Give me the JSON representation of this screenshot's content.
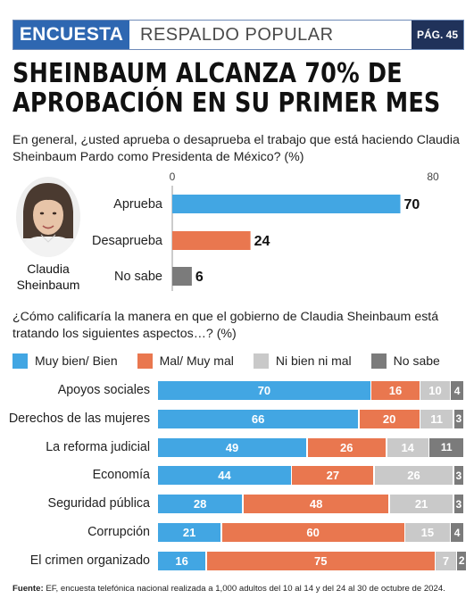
{
  "header": {
    "tag": "ENCUESTA",
    "section": "RESPALDO POPULAR",
    "page": "PÁG. 45"
  },
  "headline": "SHEINBAUM ALCANZA 70% DE APROBACIÓN EN SU PRIMER MES",
  "question1": "En general, ¿usted aprueba o desaprueba el trabajo que está haciendo Claudia Sheinbaum Pardo como Presidenta de México? (%)",
  "person_name": "Claudia Sheinbaum",
  "question2": "¿Cómo calificaría la manera en que el gobierno de Claudia Sheinbaum está tratando los siguientes aspectos…? (%)",
  "footer": {
    "label": "Fuente:",
    "text": "EF, encuesta telefónica nacional realizada a 1,000 adultos del 10 al 14 y del 24 al 30 de octubre de 2024."
  },
  "colors": {
    "blue": "#42a6e3",
    "orange": "#e9774f",
    "lightgray": "#c9c9c9",
    "darkgray": "#7b7b7b",
    "header_blue": "#2e67b1",
    "header_navy": "#20325a"
  },
  "chart_data": [
    {
      "type": "bar",
      "orientation": "horizontal",
      "categories": [
        "Aprueba",
        "Desaprueba",
        "No sabe"
      ],
      "values": [
        70,
        24,
        6
      ],
      "colors": [
        "#42a6e3",
        "#e9774f",
        "#7b7b7b"
      ],
      "xlim": [
        0,
        80
      ],
      "ticks": [
        "0",
        "80"
      ]
    },
    {
      "type": "bar",
      "orientation": "horizontal",
      "stacked": true,
      "categories": [
        "Apoyos sociales",
        "Derechos de las mujeres",
        "La reforma judicial",
        "Economía",
        "Seguridad pública",
        "Corrupción",
        "El crimen organizado"
      ],
      "series": [
        {
          "name": "Muy bien/ Bien",
          "color": "#42a6e3",
          "values": [
            70,
            66,
            49,
            44,
            28,
            21,
            16
          ]
        },
        {
          "name": "Mal/ Muy mal",
          "color": "#e9774f",
          "values": [
            16,
            20,
            26,
            27,
            48,
            60,
            75
          ]
        },
        {
          "name": "Ni bien ni mal",
          "color": "#c9c9c9",
          "values": [
            10,
            11,
            14,
            26,
            21,
            15,
            7
          ]
        },
        {
          "name": "No sabe",
          "color": "#7b7b7b",
          "values": [
            4,
            3,
            11,
            3,
            3,
            4,
            2
          ]
        }
      ],
      "legend_position": "top"
    }
  ]
}
